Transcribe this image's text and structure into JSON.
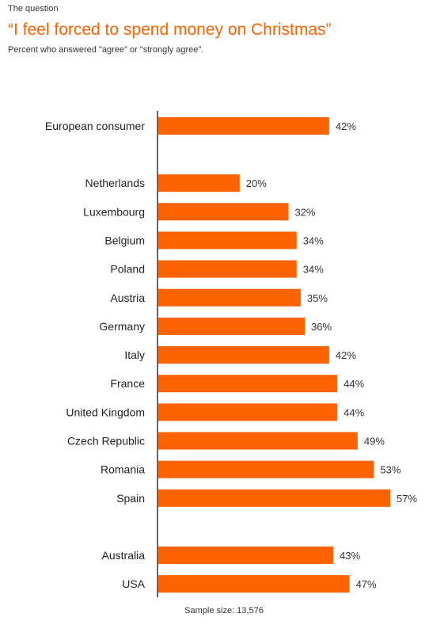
{
  "header": {
    "kicker": "The question",
    "title": "“I feel forced to spend money on Christmas”",
    "subtitle": "Percent who answered \"agree\" or \"strongly agree\"."
  },
  "footer": {
    "sample_size": "Sample size: 13,576"
  },
  "colors": {
    "bar": "#FF6200",
    "axis": "#333333"
  },
  "chart_data": {
    "type": "bar",
    "orientation": "horizontal",
    "title": "“I feel forced to spend money on Christmas”",
    "categories": [
      "European consumer",
      "Netherlands",
      "Luxembourg",
      "Belgium",
      "Poland",
      "Austria",
      "Germany",
      "Italy",
      "France",
      "United Kingdom",
      "Czech Republic",
      "Romania",
      "Spain",
      "Australia",
      "USA"
    ],
    "values": [
      42,
      20,
      32,
      34,
      34,
      35,
      36,
      42,
      44,
      44,
      49,
      53,
      57,
      43,
      47
    ],
    "value_labels": [
      "42%",
      "20%",
      "32%",
      "34%",
      "34%",
      "35%",
      "36%",
      "42%",
      "44%",
      "44%",
      "49%",
      "53%",
      "57%",
      "43%",
      "47%"
    ],
    "groups": [
      [
        "European consumer"
      ],
      [
        "Netherlands",
        "Luxembourg",
        "Belgium",
        "Poland",
        "Austria",
        "Germany",
        "Italy",
        "France",
        "United Kingdom",
        "Czech Republic",
        "Romania",
        "Spain"
      ],
      [
        "Australia",
        "USA"
      ]
    ],
    "unit": "%",
    "xlim": [
      0,
      60
    ],
    "grid": false,
    "legend": "none"
  }
}
